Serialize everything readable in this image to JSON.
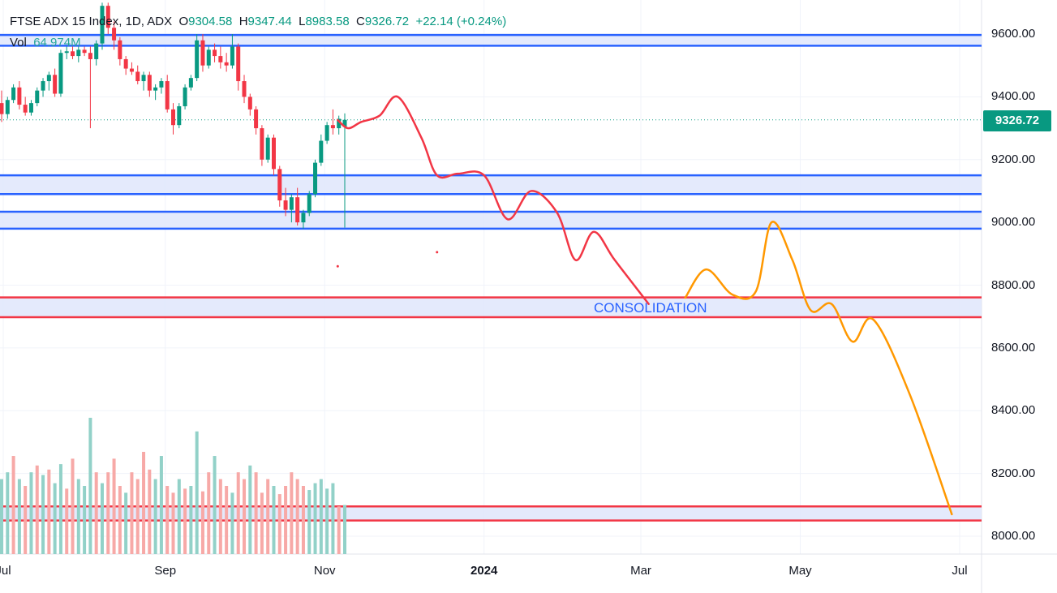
{
  "legend": {
    "symbol": "FTSE ADX 15 Index, 1D, ADX",
    "open_label": "O",
    "open": "9304.58",
    "high_label": "H",
    "high": "9347.44",
    "low_label": "L",
    "low": "8983.58",
    "close_label": "C",
    "close": "9326.72",
    "change": "+22.14 (+0.24%)"
  },
  "volume": {
    "label": "Vol",
    "value": "64.974M"
  },
  "price_tag": "9326.72",
  "annotation": "CONSOLIDATION",
  "colors": {
    "up": "#089981",
    "down": "#f23645",
    "vol_up": "#92d1c8",
    "vol_down": "#f7a9a7",
    "zone_line_blue": "#2962ff",
    "zone_line_red": "#f23645",
    "zone_fill": "#dfe6fb",
    "projection_red": "#f23645",
    "projection_orange": "#ff9800"
  },
  "chart_data": {
    "type": "candlestick",
    "y_axis": {
      "ticks": [
        "9600.00",
        "9400.00",
        "9200.00",
        "9000.00",
        "8800.00",
        "8600.00",
        "8400.00",
        "8200.00",
        "8000.00"
      ],
      "range": [
        7970,
        9700
      ]
    },
    "x_axis": {
      "ticks": [
        "Jul",
        "Sep",
        "Nov",
        "2024",
        "Mar",
        "May",
        "Jul"
      ]
    },
    "last_close": 9326.72,
    "zones": [
      {
        "color": "blue",
        "low": 9563,
        "high": 9597
      },
      {
        "color": "blue",
        "low": 9090,
        "high": 9150
      },
      {
        "color": "blue",
        "low": 8980,
        "high": 9034
      },
      {
        "color": "red",
        "low": 8698,
        "high": 8761
      },
      {
        "color": "red",
        "low": 8050,
        "high": 8095
      }
    ],
    "candles": [
      [
        9380,
        9420,
        9320,
        9345
      ],
      [
        9345,
        9400,
        9330,
        9390
      ],
      [
        9390,
        9440,
        9380,
        9430
      ],
      [
        9430,
        9450,
        9360,
        9375
      ],
      [
        9375,
        9400,
        9340,
        9350
      ],
      [
        9350,
        9390,
        9340,
        9380
      ],
      [
        9380,
        9430,
        9370,
        9420
      ],
      [
        9420,
        9460,
        9400,
        9450
      ],
      [
        9450,
        9480,
        9420,
        9470
      ],
      [
        9470,
        9490,
        9400,
        9410
      ],
      [
        9410,
        9550,
        9400,
        9540
      ],
      [
        9540,
        9560,
        9520,
        9545
      ],
      [
        9545,
        9560,
        9520,
        9530
      ],
      [
        9530,
        9560,
        9510,
        9550
      ],
      [
        9550,
        9560,
        9530,
        9540
      ],
      [
        9540,
        9560,
        9300,
        9520
      ],
      [
        9520,
        9580,
        9500,
        9570
      ],
      [
        9570,
        9700,
        9550,
        9690
      ],
      [
        9690,
        9700,
        9600,
        9620
      ],
      [
        9620,
        9640,
        9550,
        9580
      ],
      [
        9580,
        9590,
        9500,
        9520
      ],
      [
        9520,
        9530,
        9470,
        9490
      ],
      [
        9490,
        9510,
        9470,
        9480
      ],
      [
        9480,
        9500,
        9440,
        9450
      ],
      [
        9450,
        9480,
        9420,
        9470
      ],
      [
        9470,
        9480,
        9400,
        9420
      ],
      [
        9420,
        9440,
        9390,
        9430
      ],
      [
        9430,
        9460,
        9410,
        9450
      ],
      [
        9450,
        9470,
        9350,
        9360
      ],
      [
        9360,
        9380,
        9280,
        9310
      ],
      [
        9310,
        9380,
        9300,
        9370
      ],
      [
        9370,
        9440,
        9360,
        9430
      ],
      [
        9430,
        9470,
        9420,
        9460
      ],
      [
        9460,
        9600,
        9450,
        9580
      ],
      [
        9580,
        9600,
        9480,
        9500
      ],
      [
        9500,
        9560,
        9490,
        9550
      ],
      [
        9550,
        9570,
        9510,
        9530
      ],
      [
        9530,
        9560,
        9490,
        9510
      ],
      [
        9510,
        9540,
        9480,
        9500
      ],
      [
        9500,
        9600,
        9490,
        9560
      ],
      [
        9560,
        9570,
        9420,
        9450
      ],
      [
        9450,
        9470,
        9380,
        9400
      ],
      [
        9400,
        9410,
        9340,
        9360
      ],
      [
        9360,
        9370,
        9280,
        9300
      ],
      [
        9300,
        9310,
        9180,
        9200
      ],
      [
        9200,
        9280,
        9190,
        9270
      ],
      [
        9270,
        9280,
        9150,
        9170
      ],
      [
        9170,
        9180,
        9050,
        9070
      ],
      [
        9070,
        9110,
        9020,
        9040
      ],
      [
        9040,
        9090,
        9000,
        9080
      ],
      [
        9080,
        9110,
        8990,
        9000
      ],
      [
        9000,
        9040,
        8980,
        9030
      ],
      [
        9030,
        9100,
        9020,
        9090
      ],
      [
        9090,
        9200,
        9080,
        9190
      ],
      [
        9190,
        9280,
        9180,
        9260
      ],
      [
        9260,
        9320,
        9250,
        9310
      ],
      [
        9310,
        9360,
        9280,
        9300
      ],
      [
        9300,
        9340,
        9280,
        9330
      ],
      [
        9304.58,
        9347.44,
        8983.58,
        9326.72
      ]
    ],
    "volume_bars": [
      [
        0.55,
        1
      ],
      [
        0.6,
        1
      ],
      [
        0.72,
        0
      ],
      [
        0.55,
        1
      ],
      [
        0.5,
        0
      ],
      [
        0.6,
        1
      ],
      [
        0.65,
        0
      ],
      [
        0.58,
        1
      ],
      [
        0.62,
        0
      ],
      [
        0.52,
        1
      ],
      [
        0.66,
        1
      ],
      [
        0.48,
        0
      ],
      [
        0.7,
        0
      ],
      [
        0.55,
        1
      ],
      [
        0.5,
        1
      ],
      [
        1.0,
        1
      ],
      [
        0.6,
        0
      ],
      [
        0.52,
        1
      ],
      [
        0.6,
        0
      ],
      [
        0.7,
        0
      ],
      [
        0.5,
        0
      ],
      [
        0.45,
        1
      ],
      [
        0.6,
        0
      ],
      [
        0.55,
        0
      ],
      [
        0.75,
        0
      ],
      [
        0.62,
        0
      ],
      [
        0.55,
        1
      ],
      [
        0.72,
        1
      ],
      [
        0.5,
        0
      ],
      [
        0.45,
        0
      ],
      [
        0.55,
        1
      ],
      [
        0.48,
        0
      ],
      [
        0.5,
        1
      ],
      [
        0.9,
        1
      ],
      [
        0.46,
        0
      ],
      [
        0.6,
        0
      ],
      [
        0.72,
        1
      ],
      [
        0.55,
        0
      ],
      [
        0.5,
        0
      ],
      [
        0.45,
        1
      ],
      [
        0.6,
        0
      ],
      [
        0.55,
        0
      ],
      [
        0.65,
        1
      ],
      [
        0.6,
        0
      ],
      [
        0.45,
        0
      ],
      [
        0.55,
        0
      ],
      [
        0.5,
        1
      ],
      [
        0.44,
        0
      ],
      [
        0.5,
        0
      ],
      [
        0.6,
        0
      ],
      [
        0.55,
        0
      ],
      [
        0.5,
        0
      ],
      [
        0.47,
        1
      ],
      [
        0.52,
        1
      ],
      [
        0.55,
        1
      ],
      [
        0.48,
        1
      ],
      [
        0.52,
        1
      ],
      [
        0.35,
        0
      ],
      [
        0.36,
        1
      ]
    ],
    "projection_red": [
      [
        "2023-11-06",
        9326
      ],
      [
        "2023-11-10",
        9300
      ],
      [
        "2023-11-15",
        9320
      ],
      [
        "2023-11-22",
        9340
      ],
      [
        "2023-11-29",
        9400
      ],
      [
        "2023-12-08",
        9270
      ],
      [
        "2023-12-14",
        9150
      ],
      [
        "2023-12-22",
        9155
      ],
      [
        "2024-01-01",
        9150
      ],
      [
        "2024-01-10",
        9010
      ],
      [
        "2024-01-19",
        9100
      ],
      [
        "2024-01-29",
        9030
      ],
      [
        "2024-02-05",
        8880
      ],
      [
        "2024-02-12",
        8970
      ],
      [
        "2024-02-20",
        8880
      ],
      [
        "2024-03-04",
        8740
      ]
    ],
    "projection_orange": [
      [
        "2024-03-18",
        8760
      ],
      [
        "2024-03-26",
        8850
      ],
      [
        "2024-04-05",
        8770
      ],
      [
        "2024-04-14",
        8780
      ],
      [
        "2024-04-20",
        9000
      ],
      [
        "2024-04-28",
        8880
      ],
      [
        "2024-05-05",
        8720
      ],
      [
        "2024-05-13",
        8740
      ],
      [
        "2024-05-21",
        8620
      ],
      [
        "2024-05-29",
        8690
      ],
      [
        "2024-06-12",
        8450
      ],
      [
        "2024-06-28",
        8070
      ]
    ],
    "dots": [
      [
        "2023-11-06",
        8860
      ],
      [
        "2023-12-14",
        8905
      ]
    ]
  }
}
